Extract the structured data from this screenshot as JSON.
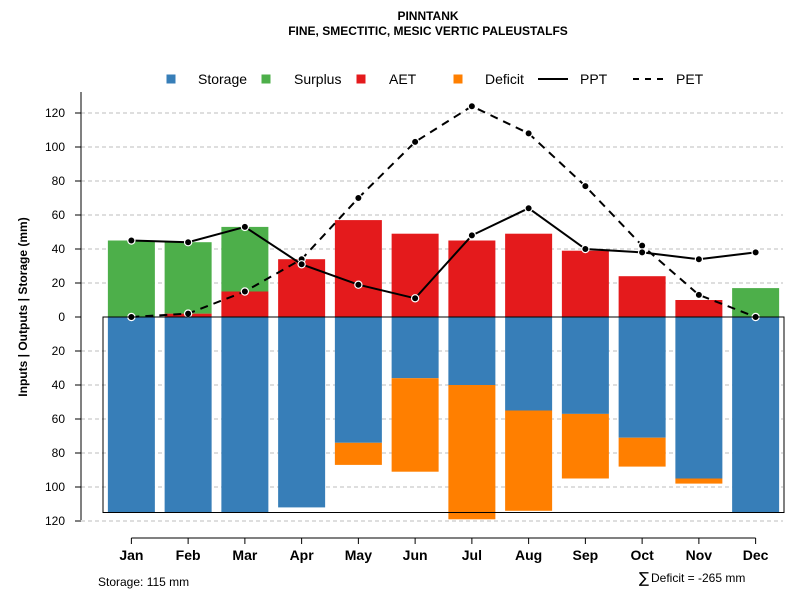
{
  "chart_data": {
    "type": "bar",
    "title": "PINNTANK",
    "subtitle": "FINE, SMECTITIC, MESIC VERTIC PALEUSTALFS",
    "ylabel": "Inputs | Outputs | Storage    (mm)",
    "categories": [
      "Jan",
      "Feb",
      "Mar",
      "Apr",
      "May",
      "Jun",
      "Jul",
      "Aug",
      "Sep",
      "Oct",
      "Nov",
      "Dec"
    ],
    "y_ticks": [
      120,
      100,
      80,
      60,
      40,
      20,
      0,
      20,
      40,
      60,
      80,
      100,
      120
    ],
    "ylim": [
      -120,
      130
    ],
    "legend": [
      {
        "label": "Storage",
        "kind": "square",
        "color": "#377EB8"
      },
      {
        "label": "Surplus",
        "kind": "square",
        "color": "#4DAF4A"
      },
      {
        "label": "AET",
        "kind": "square",
        "color": "#E41A1C"
      },
      {
        "label": "Deficit",
        "kind": "square",
        "color": "#FF7F00"
      },
      {
        "label": "PPT",
        "kind": "solid-line",
        "color": "#000000"
      },
      {
        "label": "PET",
        "kind": "dashed-line",
        "color": "#000000"
      }
    ],
    "series": [
      {
        "name": "Storage",
        "values": [
          115,
          115,
          115,
          112,
          74,
          36,
          40,
          55,
          57,
          71,
          95,
          115
        ]
      },
      {
        "name": "Deficit",
        "values": [
          0,
          0,
          0,
          0,
          13,
          55,
          79,
          59,
          38,
          17,
          3,
          0
        ]
      },
      {
        "name": "AET",
        "values": [
          0,
          2,
          15,
          34,
          57,
          49,
          45,
          49,
          39,
          24,
          10,
          0
        ]
      },
      {
        "name": "Surplus",
        "values": [
          45,
          42,
          38,
          0,
          0,
          0,
          0,
          0,
          0,
          0,
          0,
          17
        ]
      },
      {
        "name": "PPT",
        "values": [
          45,
          44,
          53,
          31,
          19,
          11,
          48,
          64,
          40,
          38,
          34,
          38
        ]
      },
      {
        "name": "PET",
        "values": [
          0,
          2,
          15,
          34,
          70,
          103,
          124,
          108,
          77,
          42,
          13,
          0
        ]
      }
    ],
    "storage_capacity": 115,
    "colors": {
      "storage": "#377EB8",
      "surplus": "#4DAF4A",
      "aet": "#E41A1C",
      "deficit": "#FF7F00",
      "grid": "#BEBEBE"
    }
  },
  "footer": {
    "storage_note": "Storage: 115 mm",
    "deficit_symbol": "∑",
    "deficit_note": "Deficit = -265 mm"
  }
}
